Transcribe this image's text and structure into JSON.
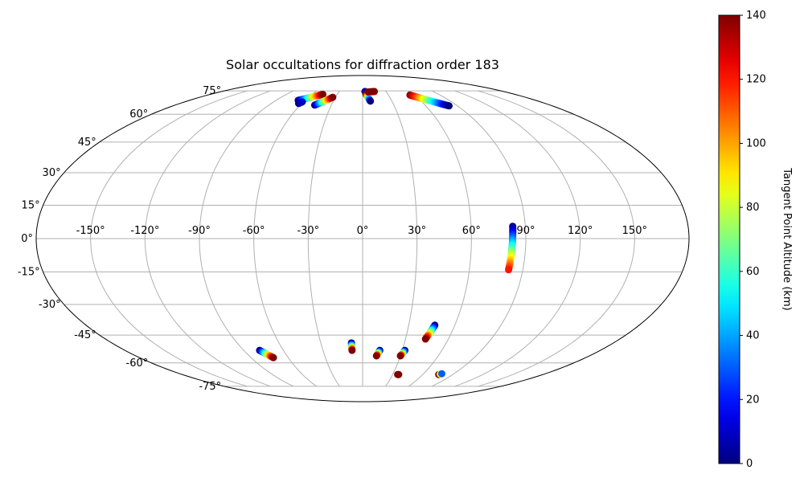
{
  "chart_data": {
    "type": "scatter",
    "projection": "mollweide-style (Aitoff/Hammer)",
    "title": "Solar occultations for diffraction order 183",
    "xlabel": "",
    "ylabel": "",
    "xlim": [
      -180,
      180
    ],
    "ylim": [
      -90,
      90
    ],
    "grid": true,
    "lon_ticks": [
      -150,
      -120,
      -90,
      -60,
      -30,
      0,
      30,
      60,
      90,
      120,
      150
    ],
    "lon_tick_labels": [
      "-150°",
      "-120°",
      "-90°",
      "-60°",
      "-30°",
      "0°",
      "30°",
      "60°",
      "90°",
      "120°",
      "150°"
    ],
    "lat_ticks": [
      75,
      60,
      45,
      30,
      15,
      0,
      -15,
      -30,
      -45,
      -60,
      -75
    ],
    "lat_tick_labels": [
      "75°",
      "60°",
      "45°",
      "30°",
      "15°",
      "0°",
      "-15°",
      "-30°",
      "-45°",
      "-60°",
      "-75°"
    ],
    "colorbar": {
      "label": "Tangent Point Altitude (km)",
      "range": [
        0,
        140
      ],
      "ticks": [
        0,
        20,
        40,
        60,
        80,
        100,
        120,
        140
      ],
      "tick_labels": [
        "0",
        "20",
        "40",
        "60",
        "80",
        "100",
        "120",
        "140"
      ],
      "colormap": "jet"
    },
    "tracks": [
      {
        "lon": [
          -67,
          -47
        ],
        "lat": [
          68.5,
          72.5
        ],
        "alt": [
          0,
          140
        ]
      },
      {
        "lon": [
          -63,
          -61
        ],
        "lat": [
          66.5,
          67.5
        ],
        "alt": [
          0,
          10
        ]
      },
      {
        "lon": [
          -46,
          -33
        ],
        "lat": [
          65.5,
          70.5
        ],
        "alt": [
          0,
          140
        ]
      },
      {
        "lon": [
          3,
          5
        ],
        "lat": [
          74.5,
          74
        ],
        "alt": [
          0,
          10
        ]
      },
      {
        "lon": [
          4,
          8
        ],
        "lat": [
          72.5,
          68
        ],
        "alt": [
          140,
          0
        ]
      },
      {
        "lon": [
          7,
          15
        ],
        "lat": [
          74.2,
          74.5
        ],
        "alt": [
          140,
          140
        ]
      },
      {
        "lon": [
          55,
          82
        ],
        "lat": [
          72,
          65
        ],
        "alt": [
          140,
          0
        ]
      },
      {
        "lon": [
          83,
          82
        ],
        "lat": [
          5.5,
          -14
        ],
        "alt": [
          0,
          120
        ]
      },
      {
        "lon": [
          -78,
          -72
        ],
        "lat": [
          -53,
          -57
        ],
        "alt": [
          0,
          140
        ]
      },
      {
        "lon": [
          -8,
          -8
        ],
        "lat": [
          -49,
          -53
        ],
        "alt": [
          0,
          140
        ]
      },
      {
        "lon": [
          13,
          11
        ],
        "lat": [
          -53,
          -56
        ],
        "alt": [
          0,
          140
        ]
      },
      {
        "lon": [
          32,
          30
        ],
        "lat": [
          -53,
          -56
        ],
        "alt": [
          0,
          140
        ]
      },
      {
        "lon": [
          47,
          44
        ],
        "lat": [
          -40,
          -47
        ],
        "alt": [
          0,
          140
        ]
      },
      {
        "lon": [
          35,
          36
        ],
        "lat": [
          -67,
          -67
        ],
        "alt": [
          140,
          140
        ]
      },
      {
        "lon": [
          76,
          78
        ],
        "lat": [
          -67,
          -66.5
        ],
        "alt": [
          140,
          30
        ]
      }
    ]
  }
}
